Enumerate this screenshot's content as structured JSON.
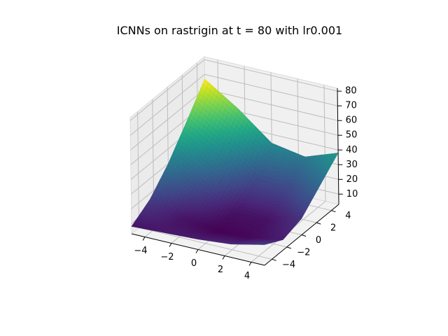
{
  "chart_data": {
    "type": "surface3d",
    "title": "ICNNs on rastrigin at t = 80 with lr0.001",
    "xlabel": "",
    "ylabel": "",
    "zlabel": "",
    "colormap": "viridis",
    "grid": true,
    "xlim": [
      -5,
      5
    ],
    "ylim": [
      -5,
      5
    ],
    "zlim": [
      3,
      82
    ],
    "x_ticks": [
      -4,
      -2,
      0,
      2,
      4
    ],
    "y_ticks": [
      -4,
      -2,
      0,
      2,
      4
    ],
    "z_ticks": [
      10,
      20,
      30,
      40,
      50,
      60,
      70,
      80
    ],
    "x_tick_labels": [
      "−4",
      "−2",
      "0",
      "2",
      "4"
    ],
    "y_tick_labels": [
      "−4",
      "−2",
      "0",
      "2",
      "4"
    ],
    "z_tick_labels": [
      "10",
      "20",
      "30",
      "40",
      "50",
      "60",
      "70",
      "80"
    ],
    "surface": {
      "x": [
        -5,
        -2.5,
        0,
        2.5,
        5
      ],
      "y": [
        -5,
        -2.5,
        0,
        2.5,
        5
      ],
      "z": [
        [
          8,
          9,
          10,
          12,
          17
        ],
        [
          16,
          8,
          5,
          6,
          10
        ],
        [
          30,
          18,
          8,
          8,
          14
        ],
        [
          48,
          34,
          18,
          18,
          26
        ],
        [
          67,
          52,
          34,
          30,
          38
        ]
      ]
    }
  }
}
